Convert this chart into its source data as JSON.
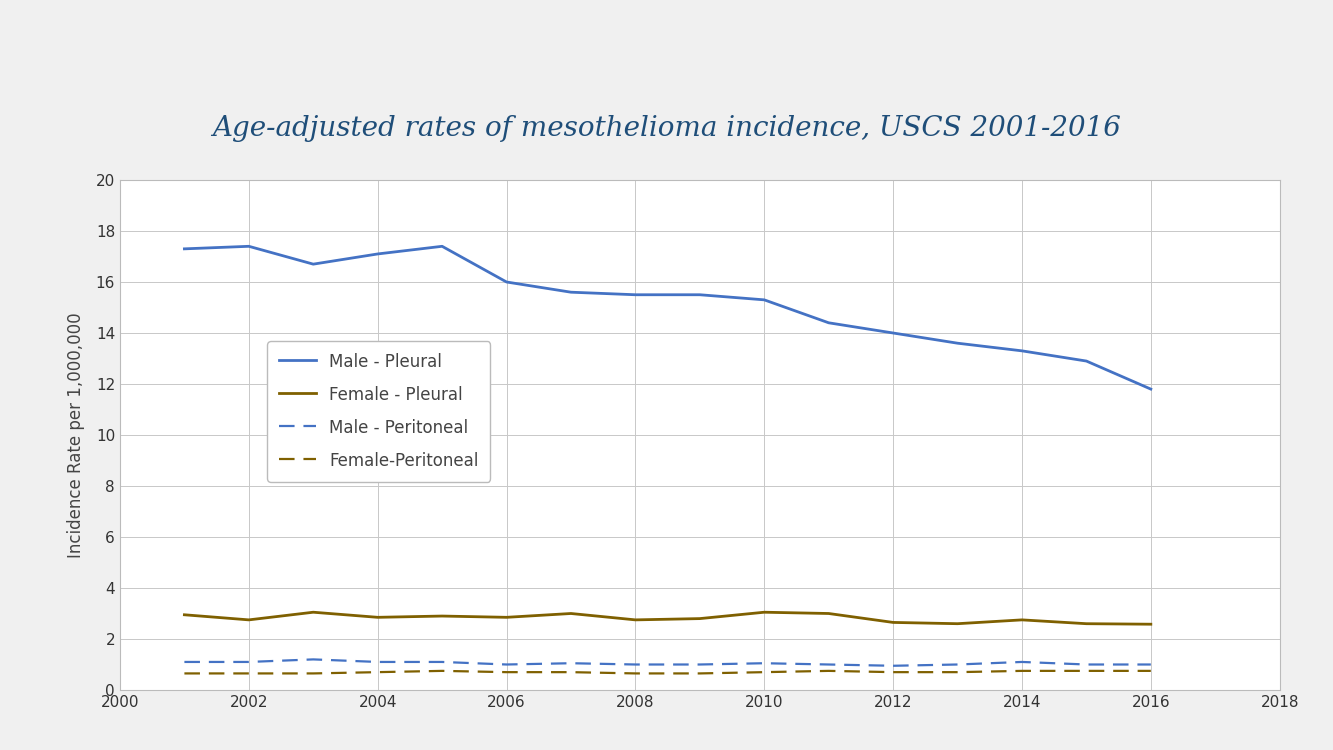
{
  "title": "Age-adjusted rates of mesothelioma incidence, USCS 2001-2016",
  "title_color": "#1F4E79",
  "title_fontsize": 20,
  "ylabel": "Incidence Rate per 1,000,000",
  "ylabel_color": "#444444",
  "ylabel_fontsize": 12,
  "background_color": "#F0F0F0",
  "plot_bg_color": "#FFFFFF",
  "header_bar_color": "#1F4E79",
  "footer_bar_color": "#2E75B6",
  "years": [
    2001,
    2002,
    2003,
    2004,
    2005,
    2006,
    2007,
    2008,
    2009,
    2010,
    2011,
    2012,
    2013,
    2014,
    2015,
    2016
  ],
  "male_pleural": [
    17.3,
    17.4,
    16.7,
    17.1,
    17.4,
    16.0,
    15.6,
    15.5,
    15.5,
    15.3,
    14.4,
    14.0,
    13.6,
    13.3,
    12.9,
    11.8
  ],
  "female_pleural": [
    2.95,
    2.75,
    3.05,
    2.85,
    2.9,
    2.85,
    3.0,
    2.75,
    2.8,
    3.05,
    3.0,
    2.65,
    2.6,
    2.75,
    2.6,
    2.58
  ],
  "male_peritoneal": [
    1.1,
    1.1,
    1.2,
    1.1,
    1.1,
    1.0,
    1.05,
    1.0,
    1.0,
    1.05,
    1.0,
    0.95,
    1.0,
    1.1,
    1.0,
    1.0
  ],
  "female_peritoneal": [
    0.65,
    0.65,
    0.65,
    0.7,
    0.75,
    0.7,
    0.7,
    0.65,
    0.65,
    0.7,
    0.75,
    0.7,
    0.7,
    0.75,
    0.75,
    0.75
  ],
  "male_pleural_color": "#4472C4",
  "female_pleural_color": "#7F6000",
  "male_peritoneal_color": "#4472C4",
  "female_peritoneal_color": "#7F6000",
  "grid_color": "#C8C8C8",
  "ylim": [
    0,
    20
  ],
  "yticks": [
    0,
    2,
    4,
    6,
    8,
    10,
    12,
    14,
    16,
    18,
    20
  ],
  "xlim": [
    2000,
    2018
  ],
  "xticks": [
    2000,
    2002,
    2004,
    2006,
    2008,
    2010,
    2012,
    2014,
    2016,
    2018
  ],
  "legend_labels": [
    "Male - Pleural",
    "Female - Pleural",
    "Male - Peritoneal",
    "Female-Peritoneal"
  ],
  "legend_fontsize": 12,
  "tick_fontsize": 11,
  "linewidth_solid": 2.0,
  "linewidth_dashed": 1.6
}
